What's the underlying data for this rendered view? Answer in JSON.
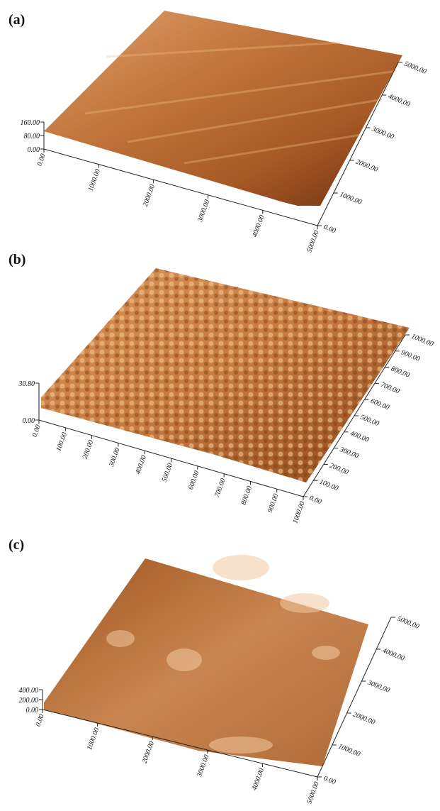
{
  "panels": [
    {
      "label": "(a)",
      "z_ticks": [
        "160.00",
        "80.00",
        "0.00"
      ],
      "x_ticks": [
        "0.00",
        "1000.00",
        "2000.00",
        "3000.00",
        "4000.00",
        "5000.00"
      ],
      "y_ticks": [
        "0.00",
        "1000.00",
        "2000.00",
        "3000.00",
        "4000.00",
        "5000.00"
      ]
    },
    {
      "label": "(b)",
      "z_ticks": [
        "30.80",
        "0.00"
      ],
      "x_ticks": [
        "0.00",
        "100.00",
        "200.00",
        "300.00",
        "400.00",
        "500.00",
        "600.00",
        "700.00",
        "800.00",
        "900.00",
        "1000.00"
      ],
      "y_ticks": [
        "0.00",
        "100.00",
        "200.00",
        "300.00",
        "400.00",
        "500.00",
        "600.00",
        "700.00",
        "800.00",
        "900.00",
        "1000.00"
      ]
    },
    {
      "label": "(c)",
      "z_ticks": [
        "400.00",
        "200.00",
        "0.00"
      ],
      "x_ticks": [
        "0.00",
        "1000.00",
        "2000.00",
        "3000.00",
        "4000.00",
        "5000.00"
      ],
      "y_ticks": [
        "0.00",
        "1000.00",
        "2000.00",
        "3000.00",
        "4000.00",
        "5000.00"
      ]
    }
  ]
}
